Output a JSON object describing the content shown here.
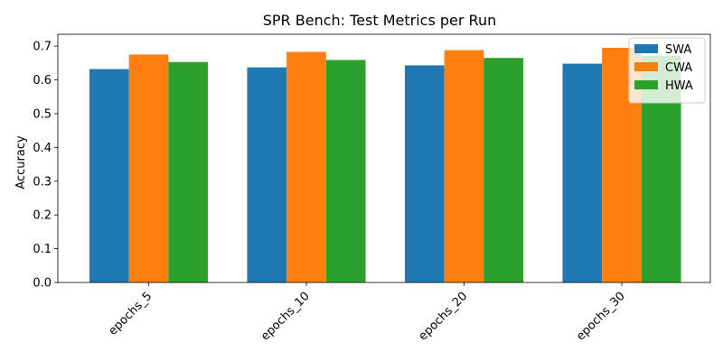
{
  "chart_data": {
    "type": "bar",
    "title": "SPR Bench: Test Metrics per Run",
    "xlabel": "",
    "ylabel": "Accuracy",
    "categories": [
      "epochs_5",
      "epochs_10",
      "epochs_20",
      "epochs_30"
    ],
    "series": [
      {
        "name": "SWA",
        "color": "#1f77b4",
        "values": [
          0.632,
          0.637,
          0.643,
          0.648
        ]
      },
      {
        "name": "CWA",
        "color": "#ff7f0e",
        "values": [
          0.675,
          0.683,
          0.688,
          0.695
        ]
      },
      {
        "name": "HWA",
        "color": "#2ca02c",
        "values": [
          0.653,
          0.659,
          0.665,
          0.671
        ]
      }
    ],
    "ylim": [
      0,
      0.735
    ],
    "yticks": [
      "0.0",
      "0.1",
      "0.2",
      "0.3",
      "0.4",
      "0.5",
      "0.6",
      "0.7"
    ],
    "grid": false,
    "legend_position": "top-right"
  }
}
